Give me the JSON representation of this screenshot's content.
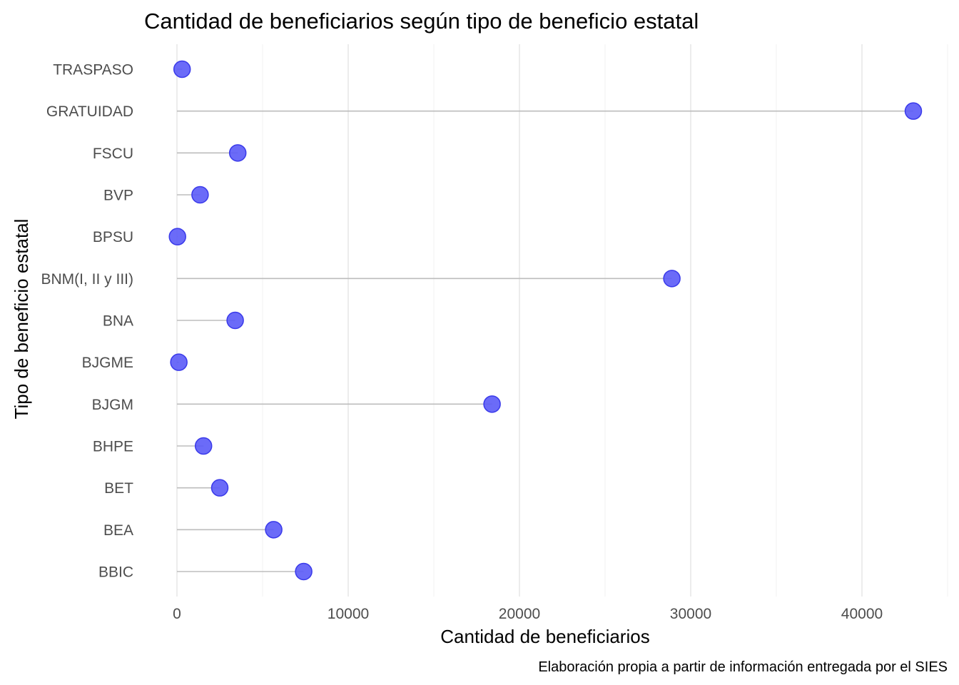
{
  "chart_data": {
    "type": "lollipop",
    "orientation": "horizontal",
    "title": "Cantidad de beneficiarios según tipo de beneficio estatal",
    "xlabel": "Cantidad de beneficiarios",
    "ylabel": "Tipo de beneficio estatal",
    "caption": "Elaboración propia a partir de información entregada por el SIES",
    "categories": [
      "TRASPASO",
      "GRATUIDAD",
      "FSCU",
      "BVP",
      "BPSU",
      "BNM(I, II y III)",
      "BNA",
      "BJGME",
      "BJGM",
      "BHPE",
      "BET",
      "BEA",
      "BBIC"
    ],
    "values": [
      300,
      43000,
      3550,
      1350,
      30,
      28900,
      3400,
      110,
      18400,
      1550,
      2500,
      5650,
      7400
    ],
    "xlim": [
      -2000,
      45000
    ],
    "xticks": [
      0,
      10000,
      20000,
      30000,
      40000
    ],
    "xtick_labels": [
      "0",
      "10000",
      "20000",
      "30000",
      "40000"
    ],
    "minor_xticks": [
      5000,
      15000,
      25000,
      35000,
      45000
    ],
    "grid": true,
    "colors": {
      "point_fill": "#5b5bf7",
      "point_stroke": "#3a3aea",
      "stem": "#bdbdbd"
    }
  }
}
